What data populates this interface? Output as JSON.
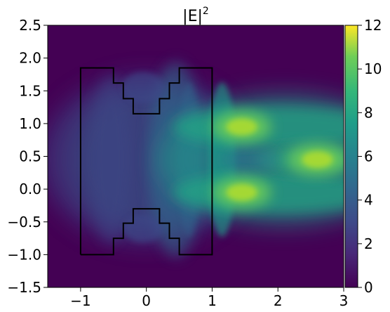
{
  "chart_data": {
    "type": "heatmap",
    "title": "|E|",
    "title_superscript": "2",
    "xlabel": "",
    "ylabel": "",
    "xlim": [
      -1.5,
      3.0
    ],
    "ylim": [
      -1.5,
      2.5
    ],
    "x_ticks": [
      -1,
      0,
      1,
      2,
      3
    ],
    "x_tick_labels": [
      "−1",
      "0",
      "1",
      "2",
      "3"
    ],
    "y_ticks": [
      -1.5,
      -1.0,
      -0.5,
      0.0,
      0.5,
      1.0,
      1.5,
      2.0,
      2.5
    ],
    "y_tick_labels": [
      "−1.5",
      "−1.0",
      "−0.5",
      "0.0",
      "0.5",
      "1.0",
      "1.5",
      "2.0",
      "2.5"
    ],
    "colorbar": {
      "colormap": "viridis",
      "range": [
        0,
        12
      ],
      "ticks": [
        0,
        2,
        4,
        6,
        8,
        10,
        12
      ],
      "tick_labels": [
        "0",
        "2",
        "4",
        "6",
        "8",
        "10",
        "12"
      ]
    },
    "hotspots": [
      {
        "x": 1.45,
        "y": 0.95,
        "value": 10
      },
      {
        "x": 1.45,
        "y": -0.05,
        "value": 10
      },
      {
        "x": 2.6,
        "y": 0.45,
        "value": 7
      }
    ],
    "device_outline": [
      [
        -1.0,
        -1.0
      ],
      [
        -1.0,
        1.85
      ],
      [
        -0.5,
        1.85
      ],
      [
        -0.5,
        1.62
      ],
      [
        -0.35,
        1.62
      ],
      [
        -0.35,
        1.38
      ],
      [
        -0.2,
        1.38
      ],
      [
        -0.2,
        1.15
      ],
      [
        0.2,
        1.15
      ],
      [
        0.2,
        1.38
      ],
      [
        0.35,
        1.38
      ],
      [
        0.35,
        1.62
      ],
      [
        0.5,
        1.62
      ],
      [
        0.5,
        1.85
      ],
      [
        1.0,
        1.85
      ],
      [
        1.0,
        -1.0
      ],
      [
        0.5,
        -1.0
      ],
      [
        0.5,
        -0.75
      ],
      [
        0.35,
        -0.75
      ],
      [
        0.35,
        -0.52
      ],
      [
        0.2,
        -0.52
      ],
      [
        0.2,
        -0.3
      ],
      [
        -0.2,
        -0.3
      ],
      [
        -0.2,
        -0.52
      ],
      [
        -0.35,
        -0.52
      ],
      [
        -0.35,
        -0.75
      ],
      [
        -0.5,
        -0.75
      ],
      [
        -0.5,
        -1.0
      ],
      [
        -1.0,
        -1.0
      ]
    ],
    "colors": {
      "low": "#440154",
      "mid": "#21918c",
      "high": "#fde725",
      "outline": "#000000"
    }
  }
}
